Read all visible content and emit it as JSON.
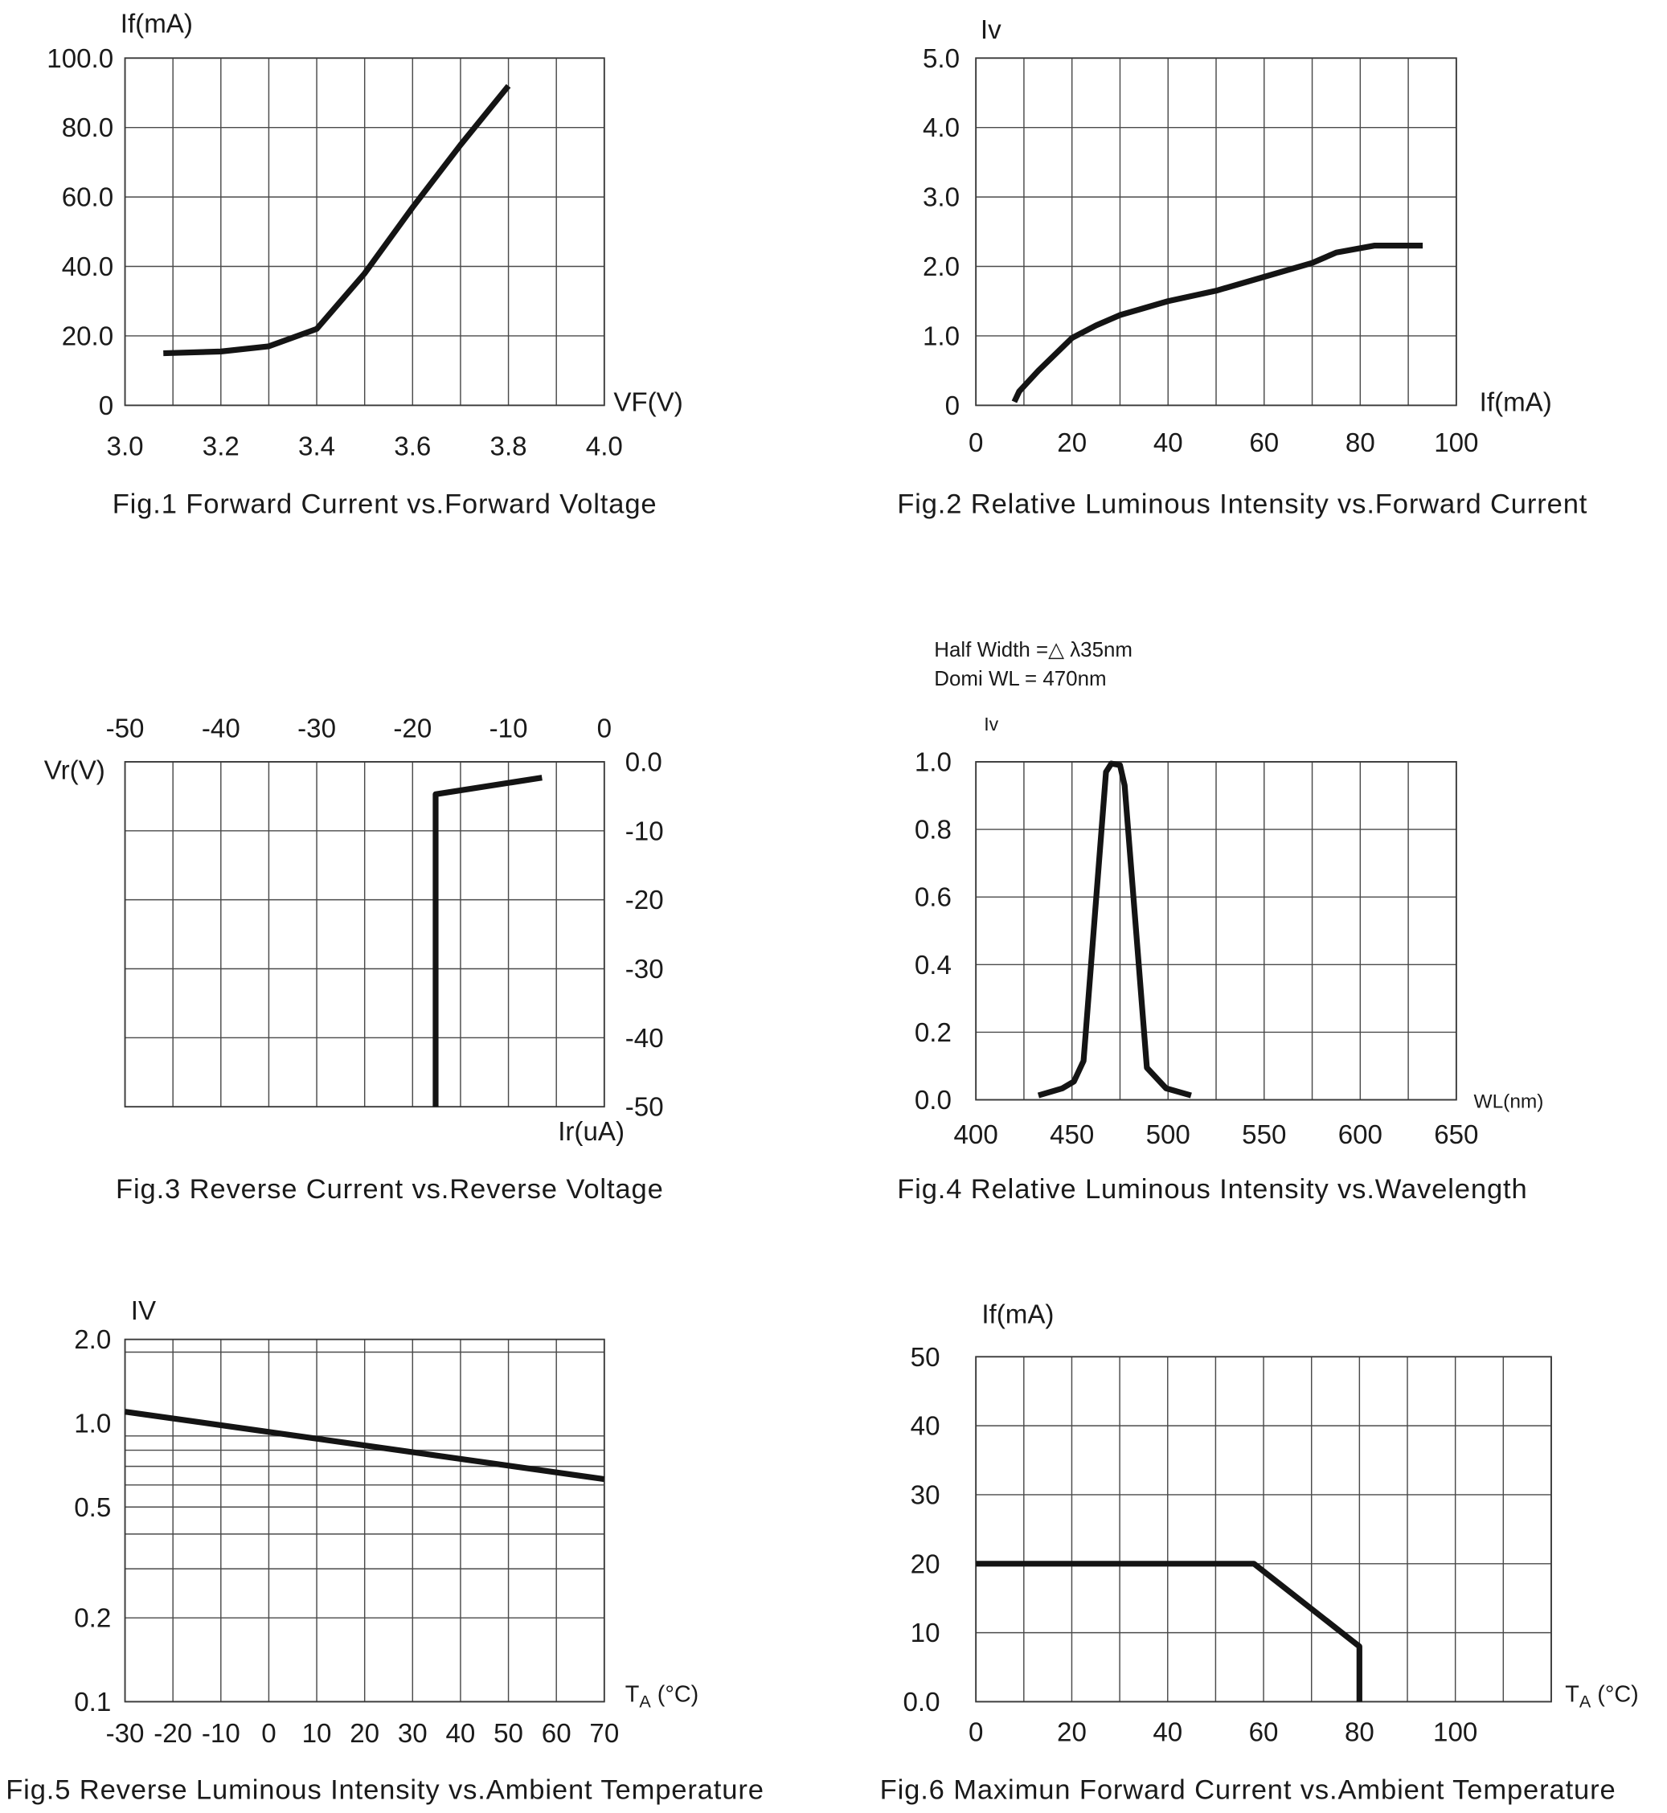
{
  "chart_data": [
    {
      "type": "line",
      "title": "Fig.1 Forward Current vs.Forward Voltage",
      "xlabel": "VF(V)",
      "ylabel": "If(mA)",
      "xlim": [
        3.0,
        4.0
      ],
      "ylim": [
        0,
        100
      ],
      "y_scale": "linear",
      "grid": true,
      "grid_step": {
        "x": 0.1,
        "y": 20
      },
      "x_ticks": [
        "3.0",
        "3.2",
        "3.4",
        "3.6",
        "3.8",
        "4.0"
      ],
      "y_ticks": [
        "0",
        "20.0",
        "40.0",
        "60.0",
        "80.0",
        "100.0"
      ],
      "series": [
        {
          "x": [
            3.08,
            3.2,
            3.3,
            3.4,
            3.5,
            3.6,
            3.7,
            3.8
          ],
          "y": [
            15,
            15.5,
            17,
            22,
            38,
            57,
            75,
            92
          ]
        }
      ]
    },
    {
      "type": "line",
      "title": "Fig.2 Relative Luminous Intensity vs.Forward Current",
      "xlabel": "If(mA)",
      "ylabel": "Iv",
      "xlim": [
        0,
        100
      ],
      "ylim": [
        0,
        5.0
      ],
      "y_scale": "linear",
      "grid": true,
      "grid_step": {
        "x": 10,
        "y": 1.0
      },
      "x_ticks": [
        "0",
        "20",
        "40",
        "60",
        "80",
        "100"
      ],
      "y_ticks": [
        "0",
        "1.0",
        "2.0",
        "3.0",
        "4.0",
        "5.0"
      ],
      "series": [
        {
          "x": [
            8,
            9,
            13,
            20,
            25,
            30,
            35,
            40,
            50,
            60,
            70,
            75,
            83,
            93
          ],
          "y": [
            0.05,
            0.2,
            0.5,
            0.97,
            1.15,
            1.3,
            1.4,
            1.5,
            1.65,
            1.85,
            2.05,
            2.2,
            2.3,
            2.3
          ]
        }
      ]
    },
    {
      "type": "line",
      "title": "Fig.3 Reverse Current vs.Reverse Voltage",
      "xlabel": "Ir(uA)",
      "ylabel": "Vr(V)",
      "xlim": [
        -50,
        0
      ],
      "ylim": [
        -50,
        0
      ],
      "y_scale": "linear",
      "x_axis_position": "top",
      "y_axis_position": "right",
      "grid": true,
      "grid_step": {
        "x": 5,
        "y": 10
      },
      "x_ticks": [
        "-50",
        "-40",
        "-30",
        "-20",
        "-10",
        "0"
      ],
      "y_ticks": [
        "0.0",
        "-10",
        "-20",
        "-30",
        "-40",
        "-50"
      ],
      "series": [
        {
          "x": [
            -17.6,
            -17.6,
            -6.5
          ],
          "y": [
            -50,
            -4.7,
            -2.3
          ]
        }
      ]
    },
    {
      "type": "line",
      "title": "Fig.4 Relative Luminous Intensity vs.Wavelength",
      "xlabel": "WL(nm)",
      "ylabel": "Iv",
      "annotations": [
        "Half Width =△ λ35nm",
        "Domi WL = 470nm"
      ],
      "xlim": [
        400,
        650
      ],
      "ylim": [
        0,
        1.0
      ],
      "y_scale": "linear",
      "grid": true,
      "grid_step": {
        "x": 25,
        "y": 0.2
      },
      "x_ticks": [
        "400",
        "450",
        "500",
        "550",
        "600",
        "650"
      ],
      "y_ticks": [
        "0.0",
        "0.2",
        "0.4",
        "0.6",
        "0.8",
        "1.0"
      ],
      "series": [
        {
          "x": [
            432.5,
            445,
            451,
            456,
            467.7,
            470.5,
            475,
            477.4,
            489,
            499,
            512
          ],
          "y": [
            0.013,
            0.034,
            0.054,
            0.115,
            0.97,
            0.995,
            0.99,
            0.93,
            0.095,
            0.034,
            0.013
          ]
        }
      ]
    },
    {
      "type": "line",
      "title": "Fig.5 Reverse Luminous Intensity vs.Ambient Temperature",
      "xlabel": {
        "main": "T",
        "sub": "A",
        "unit": " (°C)"
      },
      "ylabel": "IV",
      "xlim": [
        -30,
        70
      ],
      "ylim": [
        0.1,
        2.0
      ],
      "y_scale": "log",
      "grid": true,
      "grid_step": {
        "x": 10
      },
      "y_grid": [
        2.0,
        1.8,
        0.9,
        0.8,
        0.7,
        0.6,
        0.5,
        0.4,
        0.3,
        0.2,
        0.1
      ],
      "x_ticks": [
        "-30",
        "-20",
        "-10",
        "0",
        "10",
        "20",
        "30",
        "40",
        "50",
        "60",
        "70"
      ],
      "y_ticks": [
        "0.1",
        "0.2",
        "0.5",
        "1.0",
        "2.0"
      ],
      "series": [
        {
          "x": [
            -30,
            70
          ],
          "y": [
            1.1,
            0.63
          ]
        }
      ]
    },
    {
      "type": "line",
      "title": "Fig.6 Maximun Forward Current vs.Ambient Temperature",
      "xlabel": {
        "main": "T",
        "sub": "A",
        "unit": " (°C)"
      },
      "ylabel": "If(mA)",
      "xlim": [
        0,
        120
      ],
      "ylim": [
        0,
        50
      ],
      "y_scale": "linear",
      "grid": true,
      "grid_step": {
        "x": 10,
        "y": 10
      },
      "x_ticks": [
        "0",
        "20",
        "40",
        "60",
        "80",
        "100"
      ],
      "y_ticks": [
        "0.0",
        "10",
        "20",
        "30",
        "40",
        "50"
      ],
      "series": [
        {
          "x": [
            0,
            58,
            80,
            80
          ],
          "y": [
            20,
            20,
            8,
            0
          ]
        }
      ]
    }
  ]
}
